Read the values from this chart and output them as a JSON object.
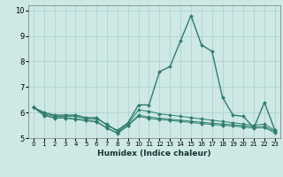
{
  "xlabel": "Humidex (Indice chaleur)",
  "xlim": [
    -0.5,
    23.5
  ],
  "ylim": [
    5.0,
    10.2
  ],
  "yticks": [
    5,
    6,
    7,
    8,
    9,
    10
  ],
  "xticks": [
    0,
    1,
    2,
    3,
    4,
    5,
    6,
    7,
    8,
    9,
    10,
    11,
    12,
    13,
    14,
    15,
    16,
    17,
    18,
    19,
    20,
    21,
    22,
    23
  ],
  "bg_color": "#cde8e5",
  "line_color": "#2e7d6e",
  "grid_color": "#aacfcc",
  "lines": [
    [
      6.2,
      6.0,
      5.9,
      5.9,
      5.9,
      5.8,
      5.8,
      5.5,
      5.3,
      5.6,
      6.3,
      6.3,
      7.6,
      7.8,
      8.8,
      9.8,
      8.65,
      8.4,
      6.6,
      5.9,
      5.85,
      5.4,
      6.4,
      5.3
    ],
    [
      6.2,
      5.95,
      5.85,
      5.85,
      5.85,
      5.75,
      5.75,
      5.55,
      5.25,
      5.55,
      6.1,
      6.05,
      5.95,
      5.9,
      5.85,
      5.8,
      5.75,
      5.7,
      5.65,
      5.6,
      5.55,
      5.5,
      5.55,
      5.3
    ],
    [
      6.2,
      5.9,
      5.8,
      5.8,
      5.75,
      5.7,
      5.65,
      5.4,
      5.2,
      5.5,
      5.9,
      5.82,
      5.78,
      5.74,
      5.7,
      5.66,
      5.62,
      5.58,
      5.55,
      5.52,
      5.48,
      5.44,
      5.46,
      5.25
    ],
    [
      6.2,
      5.88,
      5.78,
      5.78,
      5.73,
      5.68,
      5.63,
      5.38,
      5.18,
      5.48,
      5.85,
      5.77,
      5.73,
      5.69,
      5.65,
      5.61,
      5.57,
      5.53,
      5.5,
      5.47,
      5.43,
      5.39,
      5.41,
      5.2
    ]
  ]
}
